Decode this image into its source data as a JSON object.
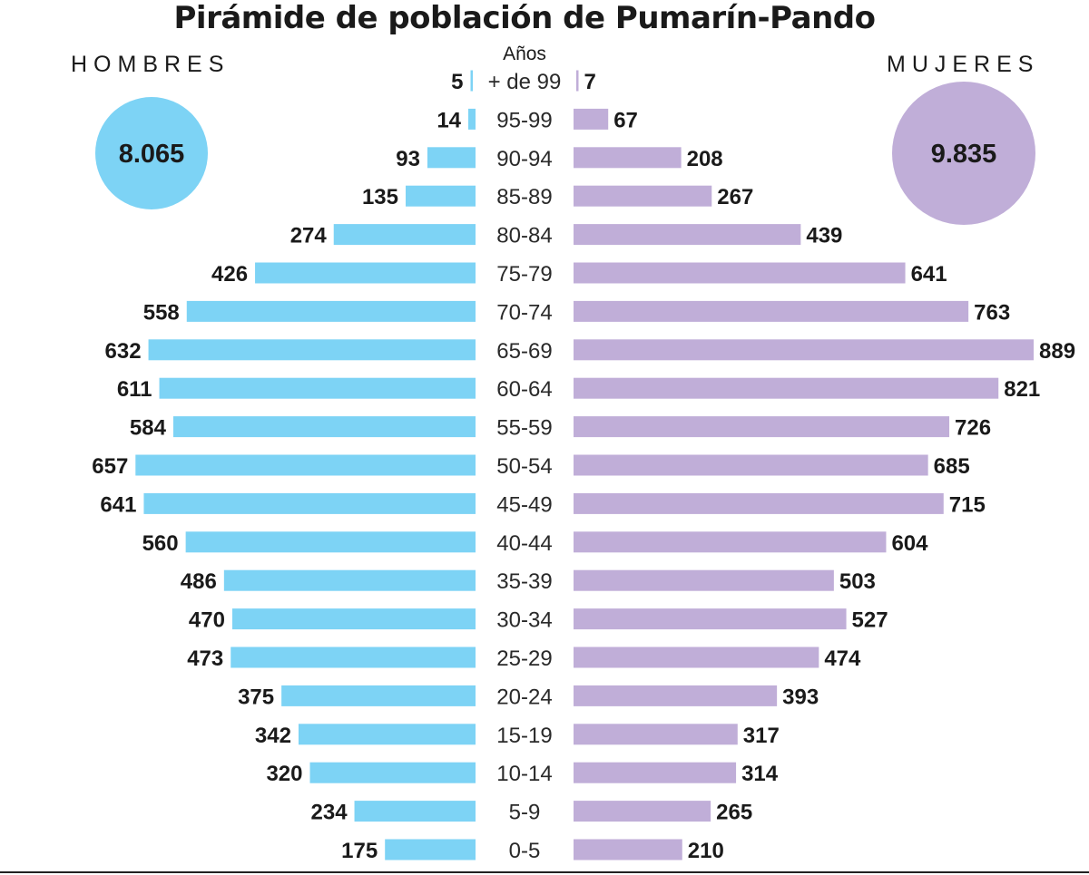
{
  "chart_data": {
    "type": "bar",
    "title": "Pirámide de población de Pumarín-Pando",
    "age_header": "Años",
    "categories": [
      "+ de 99",
      "95-99",
      "90-94",
      "85-89",
      "80-84",
      "75-79",
      "70-74",
      "65-69",
      "60-64",
      "55-59",
      "50-54",
      "45-49",
      "40-44",
      "35-39",
      "30-34",
      "25-29",
      "20-24",
      "15-19",
      "10-14",
      "5-9",
      "0-5"
    ],
    "series": [
      {
        "name": "HOMBRES",
        "total": "8.065",
        "color": "#7dd3f5",
        "values": [
          5,
          14,
          93,
          135,
          274,
          426,
          558,
          632,
          611,
          584,
          657,
          641,
          560,
          486,
          470,
          473,
          375,
          342,
          320,
          234,
          175
        ]
      },
      {
        "name": "MUJERES",
        "total": "9.835",
        "color": "#c0aed8",
        "values": [
          7,
          67,
          208,
          267,
          439,
          641,
          763,
          889,
          821,
          726,
          685,
          715,
          604,
          503,
          527,
          474,
          393,
          317,
          314,
          265,
          210
        ]
      }
    ],
    "xlim": [
      0,
      889
    ]
  }
}
